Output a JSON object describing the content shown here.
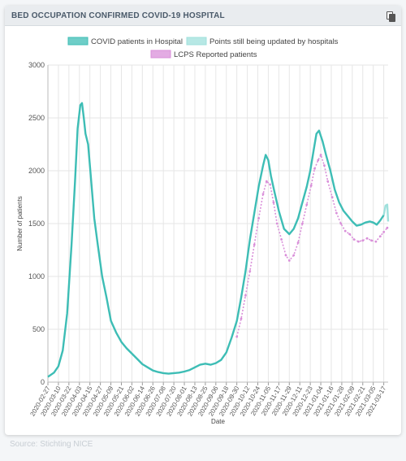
{
  "card": {
    "title": "BED OCCUPATION CONFIRMED COVID-19 HOSPITAL",
    "copy_icon": "copy-icon"
  },
  "source_text": "Source: Stichting NICE",
  "colors": {
    "covid": "#3dbdb5",
    "pending": "#9fe0dc",
    "lcps": "#d98fd9",
    "grid": "#e6e6e6"
  },
  "chart_data": {
    "type": "line",
    "title": "",
    "xlabel": "Date",
    "ylabel": "Number of patients",
    "ylim": [
      0,
      3000
    ],
    "yticks": [
      0,
      500,
      1000,
      1500,
      2000,
      2500,
      3000
    ],
    "xlim": [
      "2020-02-27",
      "2021-03-22"
    ],
    "xticks": [
      "2020-02-27",
      "2020-03-10",
      "2020-03-22",
      "2020-04-03",
      "2020-04-15",
      "2020-04-27",
      "2020-05-09",
      "2020-05-21",
      "2020-06-02",
      "2020-06-14",
      "2020-06-26",
      "2020-07-08",
      "2020-07-20",
      "2020-08-01",
      "2020-08-13",
      "2020-08-25",
      "2020-09-06",
      "2020-09-18",
      "2020-09-30",
      "2020-10-12",
      "2020-10-24",
      "2020-11-05",
      "2020-11-17",
      "2020-11-29",
      "2020-12-11",
      "2020-12-23",
      "2021-01-04",
      "2021-01-16",
      "2021-01-28",
      "2021-02-09",
      "2021-02-21",
      "2021-03-05",
      "2021-03-17"
    ],
    "grid": true,
    "legend": "top",
    "series": [
      {
        "name": "COVID patients in Hospital",
        "points": [
          [
            "2020-02-27",
            50
          ],
          [
            "2020-03-05",
            90
          ],
          [
            "2020-03-10",
            150
          ],
          [
            "2020-03-15",
            300
          ],
          [
            "2020-03-20",
            650
          ],
          [
            "2020-03-25",
            1300
          ],
          [
            "2020-03-29",
            1900
          ],
          [
            "2020-04-01",
            2400
          ],
          [
            "2020-04-04",
            2620
          ],
          [
            "2020-04-06",
            2640
          ],
          [
            "2020-04-08",
            2500
          ],
          [
            "2020-04-10",
            2350
          ],
          [
            "2020-04-13",
            2250
          ],
          [
            "2020-04-16",
            1950
          ],
          [
            "2020-04-20",
            1550
          ],
          [
            "2020-04-24",
            1300
          ],
          [
            "2020-04-29",
            1000
          ],
          [
            "2020-05-04",
            800
          ],
          [
            "2020-05-09",
            580
          ],
          [
            "2020-05-15",
            470
          ],
          [
            "2020-05-21",
            380
          ],
          [
            "2020-05-27",
            320
          ],
          [
            "2020-06-02",
            270
          ],
          [
            "2020-06-08",
            220
          ],
          [
            "2020-06-14",
            170
          ],
          [
            "2020-06-20",
            140
          ],
          [
            "2020-06-26",
            110
          ],
          [
            "2020-07-02",
            95
          ],
          [
            "2020-07-08",
            85
          ],
          [
            "2020-07-14",
            80
          ],
          [
            "2020-07-20",
            85
          ],
          [
            "2020-07-26",
            90
          ],
          [
            "2020-08-01",
            100
          ],
          [
            "2020-08-07",
            115
          ],
          [
            "2020-08-13",
            140
          ],
          [
            "2020-08-19",
            165
          ],
          [
            "2020-08-25",
            175
          ],
          [
            "2020-08-31",
            165
          ],
          [
            "2020-09-06",
            180
          ],
          [
            "2020-09-12",
            210
          ],
          [
            "2020-09-18",
            280
          ],
          [
            "2020-09-24",
            420
          ],
          [
            "2020-09-30",
            580
          ],
          [
            "2020-10-05",
            800
          ],
          [
            "2020-10-10",
            1050
          ],
          [
            "2020-10-15",
            1350
          ],
          [
            "2020-10-20",
            1600
          ],
          [
            "2020-10-25",
            1850
          ],
          [
            "2020-10-30",
            2050
          ],
          [
            "2020-11-02",
            2150
          ],
          [
            "2020-11-05",
            2100
          ],
          [
            "2020-11-08",
            1950
          ],
          [
            "2020-11-12",
            1800
          ],
          [
            "2020-11-17",
            1620
          ],
          [
            "2020-11-23",
            1450
          ],
          [
            "2020-11-29",
            1400
          ],
          [
            "2020-12-04",
            1450
          ],
          [
            "2020-12-09",
            1550
          ],
          [
            "2020-12-14",
            1700
          ],
          [
            "2020-12-19",
            1850
          ],
          [
            "2020-12-23",
            2000
          ],
          [
            "2020-12-27",
            2200
          ],
          [
            "2020-12-30",
            2350
          ],
          [
            "2021-01-02",
            2380
          ],
          [
            "2021-01-06",
            2280
          ],
          [
            "2021-01-10",
            2150
          ],
          [
            "2021-01-15",
            2000
          ],
          [
            "2021-01-20",
            1820
          ],
          [
            "2021-01-25",
            1700
          ],
          [
            "2021-01-30",
            1620
          ],
          [
            "2021-02-04",
            1570
          ],
          [
            "2021-02-09",
            1520
          ],
          [
            "2021-02-14",
            1480
          ],
          [
            "2021-02-19",
            1490
          ],
          [
            "2021-02-24",
            1510
          ],
          [
            "2021-03-01",
            1520
          ],
          [
            "2021-03-05",
            1510
          ],
          [
            "2021-03-09",
            1490
          ],
          [
            "2021-03-13",
            1530
          ],
          [
            "2021-03-17",
            1580
          ]
        ]
      },
      {
        "name": "Points still being updated by hospitals",
        "points": [
          [
            "2021-03-17",
            1580
          ],
          [
            "2021-03-19",
            1670
          ],
          [
            "2021-03-21",
            1680
          ],
          [
            "2021-03-22",
            1520
          ]
        ]
      },
      {
        "name": "LCPS Reported patients",
        "points": [
          [
            "2020-09-30",
            430
          ],
          [
            "2020-10-05",
            600
          ],
          [
            "2020-10-10",
            820
          ],
          [
            "2020-10-15",
            1050
          ],
          [
            "2020-10-20",
            1300
          ],
          [
            "2020-10-25",
            1550
          ],
          [
            "2020-10-30",
            1780
          ],
          [
            "2020-11-03",
            1900
          ],
          [
            "2020-11-07",
            1870
          ],
          [
            "2020-11-11",
            1700
          ],
          [
            "2020-11-15",
            1500
          ],
          [
            "2020-11-20",
            1350
          ],
          [
            "2020-11-25",
            1200
          ],
          [
            "2020-11-29",
            1150
          ],
          [
            "2020-12-04",
            1200
          ],
          [
            "2020-12-09",
            1320
          ],
          [
            "2020-12-14",
            1500
          ],
          [
            "2020-12-19",
            1680
          ],
          [
            "2020-12-24",
            1860
          ],
          [
            "2020-12-28",
            2020
          ],
          [
            "2021-01-01",
            2100
          ],
          [
            "2021-01-04",
            2150
          ],
          [
            "2021-01-08",
            2050
          ],
          [
            "2021-01-12",
            1900
          ],
          [
            "2021-01-17",
            1750
          ],
          [
            "2021-01-22",
            1600
          ],
          [
            "2021-01-27",
            1500
          ],
          [
            "2021-02-01",
            1430
          ],
          [
            "2021-02-06",
            1400
          ],
          [
            "2021-02-11",
            1350
          ],
          [
            "2021-02-16",
            1330
          ],
          [
            "2021-02-21",
            1340
          ],
          [
            "2021-02-26",
            1360
          ],
          [
            "2021-03-03",
            1340
          ],
          [
            "2021-03-08",
            1330
          ],
          [
            "2021-03-13",
            1380
          ],
          [
            "2021-03-17",
            1420
          ],
          [
            "2021-03-21",
            1460
          ]
        ]
      }
    ]
  }
}
